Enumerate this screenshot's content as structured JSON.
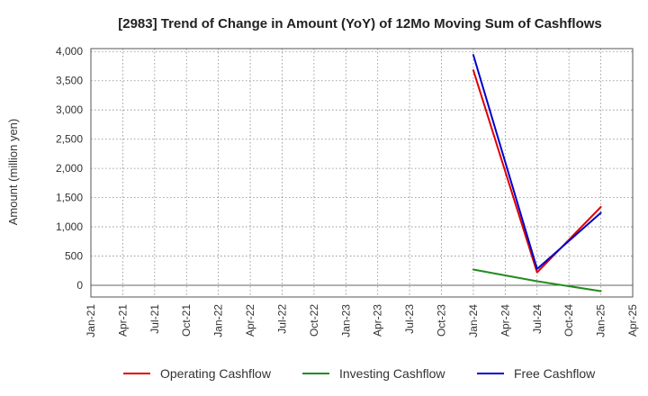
{
  "chart_data": {
    "type": "line",
    "title": "[2983]  Trend of Change in Amount (YoY) of 12Mo Moving Sum of Cashflows",
    "xlabel": "",
    "ylabel": "Amount (million yen)",
    "ylim": [
      -200,
      4050
    ],
    "y_ticks": [
      0,
      500,
      1000,
      1500,
      2000,
      2500,
      3000,
      3500,
      4000
    ],
    "y_tick_labels": [
      "0",
      "500",
      "1,000",
      "1,500",
      "2,000",
      "2,500",
      "3,000",
      "3,500",
      "4,000"
    ],
    "x_ticks": [
      "Jan-21",
      "Apr-21",
      "Jul-21",
      "Oct-21",
      "Jan-22",
      "Apr-22",
      "Jul-22",
      "Oct-22",
      "Jan-23",
      "Apr-23",
      "Jul-23",
      "Oct-23",
      "Jan-24",
      "Apr-24",
      "Jul-24",
      "Oct-24",
      "Jan-25",
      "Apr-25"
    ],
    "x": [
      "Jan-24",
      "Jul-24",
      "Jan-25"
    ],
    "series": [
      {
        "name": "Operating Cashflow",
        "color": "#dd0000",
        "values": [
          3680,
          220,
          1340
        ]
      },
      {
        "name": "Investing Cashflow",
        "color": "#228b22",
        "values": [
          270,
          70,
          -100
        ]
      },
      {
        "name": "Free Cashflow",
        "color": "#0000cc",
        "values": [
          3940,
          280,
          1240
        ]
      }
    ],
    "grid": true,
    "legend_position": "bottom"
  }
}
